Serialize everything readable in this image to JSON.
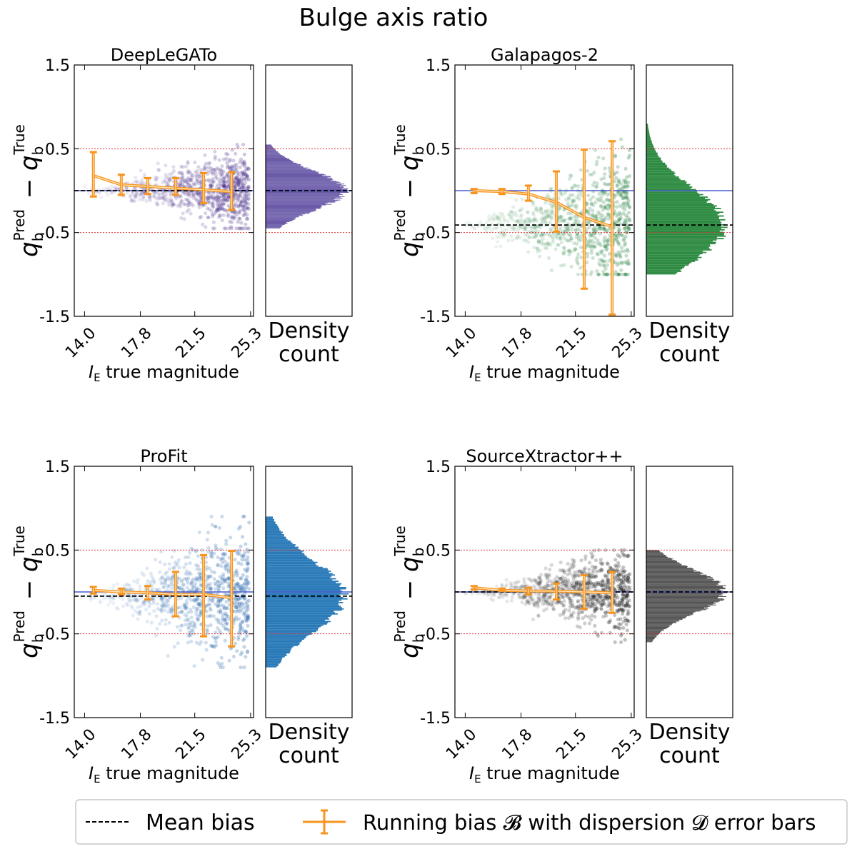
{
  "chart_data": {
    "title": "Bulge axis ratio",
    "type": "scatter",
    "xlabel": "I_E true magnitude",
    "ylabel": "q_b^Pred − q_b^True",
    "hist_label_lines": [
      "Density",
      "count"
    ],
    "xlim": [
      13.3,
      25.5
    ],
    "ylim": [
      -1.5,
      1.5
    ],
    "x_ticks": [
      "14.0",
      "17.8",
      "21.5",
      "25.3"
    ],
    "x_tick_values": [
      14.0,
      17.8,
      21.5,
      25.3
    ],
    "y_ticks": [
      "1.5",
      "0.5",
      "-0.5",
      "-1.5"
    ],
    "y_tick_values": [
      1.5,
      0.5,
      -0.5,
      -1.5
    ],
    "threshold_lines": [
      0.5,
      -0.5
    ],
    "zero_line": 0.0,
    "panels": [
      {
        "name": "DeepLeGATo",
        "color": "#4a2f8a",
        "hist_color": "#6a5aa8",
        "mean_bias": 0.0,
        "scatter_range": [
          -0.45,
          0.55
        ],
        "running_bias": {
          "x": [
            14.6,
            16.5,
            18.3,
            20.2,
            22.1,
            24.0
          ],
          "y": [
            0.18,
            0.07,
            0.05,
            0.03,
            0.01,
            -0.01
          ],
          "lo": [
            -0.07,
            -0.05,
            -0.04,
            -0.05,
            -0.15,
            -0.23
          ],
          "hi": [
            0.46,
            0.19,
            0.15,
            0.15,
            0.21,
            0.22
          ]
        }
      },
      {
        "name": "Galapagos-2",
        "color": "#1e7d3a",
        "hist_color": "#2e8b42",
        "mean_bias": -0.41,
        "scatter_range": [
          -1.0,
          0.8
        ],
        "running_bias": {
          "x": [
            14.6,
            16.5,
            18.3,
            20.2,
            22.1,
            24.0
          ],
          "y": [
            0.0,
            -0.01,
            -0.04,
            -0.14,
            -0.32,
            -0.43
          ],
          "lo": [
            -0.03,
            -0.04,
            -0.12,
            -0.49,
            -1.17,
            -1.48
          ],
          "hi": [
            0.02,
            0.02,
            0.06,
            0.23,
            0.49,
            0.59
          ]
        }
      },
      {
        "name": "ProFit",
        "color": "#1f5fa8",
        "hist_color": "#2a7ab8",
        "mean_bias": -0.05,
        "scatter_range": [
          -0.9,
          0.9
        ],
        "running_bias": {
          "x": [
            14.6,
            16.5,
            18.3,
            20.2,
            22.1,
            24.0
          ],
          "y": [
            0.02,
            0.0,
            -0.01,
            -0.03,
            -0.03,
            -0.07
          ],
          "lo": [
            -0.02,
            -0.03,
            -0.09,
            -0.29,
            -0.53,
            -0.65
          ],
          "hi": [
            0.06,
            0.04,
            0.07,
            0.24,
            0.44,
            0.49
          ]
        }
      },
      {
        "name": "SourceXtractor++",
        "color": "#111111",
        "hist_color": "#555555",
        "mean_bias": 0.0,
        "scatter_range": [
          -0.6,
          0.5
        ],
        "running_bias": {
          "x": [
            14.6,
            16.5,
            18.3,
            20.2,
            22.1,
            24.0
          ],
          "y": [
            0.05,
            0.02,
            0.01,
            0.01,
            0.0,
            -0.01
          ],
          "lo": [
            0.03,
            0.01,
            -0.03,
            -0.09,
            -0.2,
            -0.25
          ],
          "hi": [
            0.07,
            0.04,
            0.05,
            0.1,
            0.2,
            0.24
          ]
        }
      }
    ],
    "legend": {
      "position": "bottom",
      "mean_bias_label": "Mean bias",
      "running_bias_label": "Running bias 𝓑 with dispersion 𝓓 error bars"
    }
  }
}
